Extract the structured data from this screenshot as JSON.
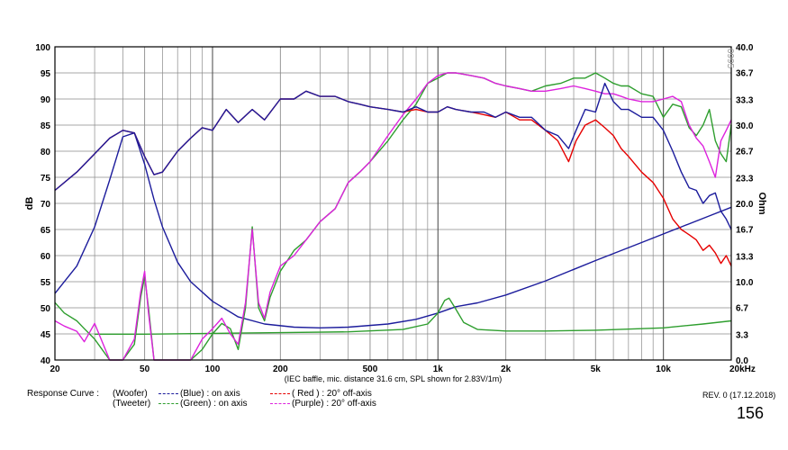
{
  "chart_data": {
    "type": "line",
    "ylabel_left": "dB",
    "ylabel_right": "Ohm",
    "ylim_left": [
      40,
      100
    ],
    "ylim_right": [
      0.0,
      40.0
    ],
    "xlim": [
      20,
      20000
    ],
    "x_scale": "log",
    "x_ticks": [
      {
        "v": 20,
        "label": "20"
      },
      {
        "v": 50,
        "label": "50"
      },
      {
        "v": 100,
        "label": "100"
      },
      {
        "v": 200,
        "label": "200"
      },
      {
        "v": 500,
        "label": "500"
      },
      {
        "v": 1000,
        "label": "1k"
      },
      {
        "v": 2000,
        "label": "2k"
      },
      {
        "v": 5000,
        "label": "5k"
      },
      {
        "v": 10000,
        "label": "10k"
      },
      {
        "v": 20000,
        "label": "20kHz"
      }
    ],
    "y_ticks_left": [
      "40",
      "45",
      "50",
      "55",
      "60",
      "65",
      "70",
      "75",
      "80",
      "85",
      "90",
      "95",
      "100"
    ],
    "y_ticks_right": [
      "0.0",
      "3.3",
      "6.7",
      "10.0",
      "13.3",
      "16.7",
      "20.0",
      "23.3",
      "26.7",
      "30.0",
      "33.3",
      "36.7",
      "40.0"
    ],
    "x_caption": "(IEC baffle, mic. distance 31.6 cm, SPL shown for 2.83V/1m)",
    "watermark": "0995",
    "series": [
      {
        "name": "(Blue) : on axis",
        "color": "#1c1c9c",
        "axis": "left",
        "x": [
          20,
          25,
          30,
          35,
          40,
          45,
          50,
          55,
          60,
          70,
          80,
          90,
          100,
          115,
          130,
          150,
          170,
          200,
          230,
          260,
          300,
          350,
          400,
          450,
          500,
          600,
          700,
          800,
          900,
          1000,
          1100,
          1200,
          1400,
          1600,
          1800,
          2000,
          2300,
          2600,
          3000,
          3400,
          3800,
          4100,
          4500,
          5000,
          5500,
          6000,
          6500,
          7000,
          8000,
          9000,
          10000,
          11000,
          12000,
          13000,
          14000,
          15000,
          16000,
          17000,
          18000,
          19000,
          20000
        ],
        "y": [
          72.5,
          76,
          79.5,
          82.5,
          84,
          83.5,
          79,
          75.5,
          76,
          80,
          82.5,
          84.5,
          84,
          88,
          85.5,
          88,
          86,
          90,
          90,
          91.5,
          90.5,
          90.5,
          89.5,
          89,
          88.5,
          88,
          87.5,
          88.5,
          87.5,
          87.5,
          88.5,
          88,
          87.5,
          87.5,
          86.5,
          87.5,
          86.5,
          86.5,
          84,
          83,
          80.5,
          84,
          88,
          87.5,
          93,
          89.5,
          88,
          88,
          86.5,
          86.5,
          84,
          80,
          76,
          73,
          72.5,
          70,
          71.5,
          72,
          68.5,
          67,
          65
        ]
      },
      {
        "name": "( Red ) : 20° off-axis",
        "color": "#e60000",
        "axis": "left",
        "x": [
          20,
          25,
          30,
          35,
          40,
          45,
          50,
          55,
          60,
          70,
          80,
          90,
          100,
          115,
          130,
          150,
          170,
          200,
          230,
          260,
          300,
          350,
          400,
          450,
          500,
          600,
          700,
          800,
          900,
          1000,
          1100,
          1200,
          1400,
          1600,
          1800,
          2000,
          2300,
          2600,
          3000,
          3400,
          3800,
          4100,
          4500,
          5000,
          5500,
          6000,
          6500,
          7000,
          8000,
          9000,
          10000,
          11000,
          12000,
          13000,
          14000,
          15000,
          16000,
          17000,
          18000,
          19000,
          20000
        ],
        "y": [
          72.5,
          76,
          79.5,
          82.5,
          84,
          83.5,
          79,
          75.5,
          76,
          80,
          82.5,
          84.5,
          84,
          88,
          85.5,
          88,
          86,
          90,
          90,
          91.5,
          90.5,
          90.5,
          89.5,
          89,
          88.5,
          88,
          87.5,
          88,
          87.5,
          87.5,
          88.5,
          88,
          87.5,
          87,
          86.5,
          87.5,
          86,
          86,
          84,
          82,
          78,
          82,
          85,
          86,
          84.5,
          83,
          80.5,
          79,
          76,
          74,
          71,
          67,
          65,
          64,
          63,
          61,
          62,
          60.5,
          58.5,
          60,
          58
        ]
      },
      {
        "name": "(Green) : on axis",
        "color": "#2e9e2e",
        "axis": "left",
        "x": [
          20,
          22,
          25,
          27,
          30,
          35,
          40,
          45,
          48,
          50,
          52,
          55,
          60,
          70,
          80,
          90,
          100,
          110,
          120,
          130,
          140,
          150,
          160,
          170,
          180,
          200,
          230,
          260,
          300,
          350,
          400,
          450,
          500,
          600,
          700,
          800,
          900,
          1000,
          1100,
          1200,
          1400,
          1600,
          1800,
          2000,
          2300,
          2600,
          3000,
          3500,
          4000,
          4500,
          5000,
          5500,
          6000,
          6500,
          7000,
          8000,
          9000,
          10000,
          11000,
          12000,
          13000,
          14000,
          15000,
          16000,
          17000,
          18000,
          19000,
          20000
        ],
        "y": [
          51,
          49,
          47.5,
          46,
          44,
          38,
          34,
          43,
          52,
          56,
          50,
          40,
          38,
          37,
          38,
          42,
          45,
          47,
          46,
          42,
          50,
          65.5,
          50,
          47.5,
          52,
          57,
          61,
          63,
          66.5,
          69,
          74,
          76,
          78,
          82,
          86,
          89,
          93,
          94,
          95,
          95,
          94.5,
          94,
          93,
          92.5,
          92,
          91.5,
          92.5,
          93,
          94,
          94,
          95,
          94,
          93,
          92.5,
          92.5,
          91,
          90.5,
          86.5,
          89,
          88.5,
          84.5,
          83,
          85,
          88,
          82,
          79.5,
          78,
          85
        ]
      },
      {
        "name": "(Purple) : 20° off-axis",
        "color": "#dd22dd",
        "axis": "left",
        "x": [
          20,
          22,
          25,
          27,
          30,
          35,
          40,
          45,
          48,
          50,
          52,
          55,
          60,
          70,
          80,
          90,
          100,
          110,
          120,
          130,
          140,
          150,
          160,
          170,
          180,
          200,
          230,
          260,
          300,
          350,
          400,
          450,
          500,
          600,
          700,
          800,
          900,
          1000,
          1100,
          1200,
          1400,
          1600,
          1800,
          2000,
          2300,
          2600,
          3000,
          3500,
          4000,
          4500,
          5000,
          5500,
          6000,
          6500,
          7000,
          8000,
          9000,
          10000,
          11000,
          12000,
          13000,
          14000,
          15000,
          16000,
          17000,
          18000,
          19000,
          20000
        ],
        "y": [
          47.5,
          46.5,
          45.5,
          43.5,
          47,
          39,
          35,
          44,
          53,
          57,
          49,
          40,
          38,
          38,
          40,
          44,
          46,
          48,
          45,
          43,
          51,
          65,
          51,
          48,
          53,
          58,
          60,
          63,
          66.5,
          69,
          74,
          76,
          78,
          83,
          87,
          90,
          93,
          94.5,
          95,
          95,
          94.5,
          94,
          93,
          92.5,
          92,
          91.5,
          91.5,
          92,
          92.5,
          92,
          91.5,
          91,
          91,
          90.5,
          90,
          89.5,
          89.5,
          90,
          90.5,
          89.5,
          85,
          82.5,
          81,
          78,
          75,
          82,
          84,
          86
        ]
      },
      {
        "name": "Woofer impedance",
        "color": "#1c1c9c",
        "axis": "right",
        "x": [
          20,
          25,
          30,
          35,
          40,
          45,
          50,
          55,
          60,
          70,
          80,
          100,
          130,
          170,
          230,
          300,
          400,
          600,
          800,
          1000,
          1200,
          1500,
          2000,
          3000,
          5000,
          8000,
          12000,
          16000,
          20000
        ],
        "y": [
          8.5,
          12,
          17,
          23,
          28.5,
          29,
          25,
          20.5,
          17,
          12.5,
          10,
          7.5,
          5.5,
          4.6,
          4.2,
          4.1,
          4.2,
          4.6,
          5.2,
          6.0,
          6.8,
          7.3,
          8.3,
          10.1,
          12.7,
          15.0,
          17.0,
          18.4,
          19.5
        ]
      },
      {
        "name": "Tweeter impedance",
        "color": "#2e9e2e",
        "axis": "right",
        "x": [
          30,
          50,
          100,
          200,
          400,
          700,
          900,
          1000,
          1070,
          1120,
          1200,
          1300,
          1500,
          2000,
          3000,
          5000,
          10000,
          15000,
          20000
        ],
        "y": [
          3.3,
          3.3,
          3.4,
          3.5,
          3.6,
          3.9,
          4.6,
          6.0,
          7.6,
          7.9,
          6.5,
          4.8,
          3.9,
          3.7,
          3.7,
          3.8,
          4.1,
          4.6,
          5.0
        ]
      }
    ]
  },
  "legend": {
    "label": "Response Curve :",
    "row1": [
      {
        "label": "(Woofer)",
        "swatch": "",
        "value": ""
      },
      {
        "label": "",
        "swatch": "#1c1c9c",
        "value": "(Blue)  : on axis"
      },
      {
        "label": "",
        "swatch": "#e60000",
        "value": "( Red )  : 20° off-axis"
      }
    ],
    "row2": [
      {
        "label": "(Tweeter)",
        "swatch": "",
        "value": ""
      },
      {
        "label": "",
        "swatch": "#2e9e2e",
        "value": "(Green)  : on axis"
      },
      {
        "label": "",
        "swatch": "#dd22dd",
        "value": "(Purple) : 20° off-axis"
      }
    ],
    "woofer": "(Woofer)",
    "tweeter": "(Tweeter)",
    "blue": "(Blue)  : on axis",
    "red": "( Red )  : 20° off-axis",
    "green": "(Green)  : on axis",
    "purple": "(Purple) : 20° off-axis"
  },
  "revision": "REV. 0 (17.12.2018)",
  "page_number": "156"
}
